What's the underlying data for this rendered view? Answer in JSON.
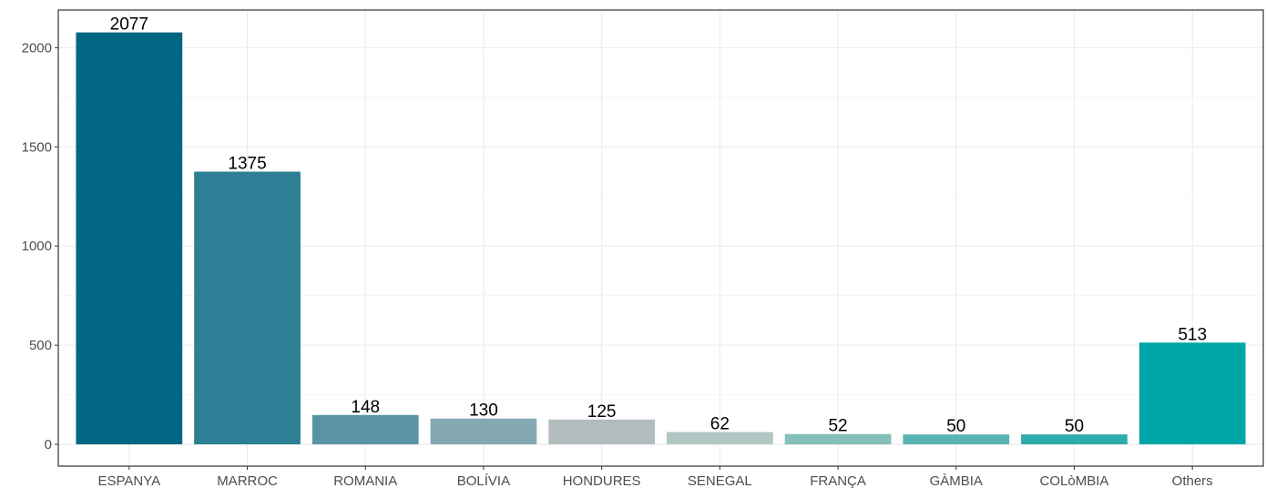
{
  "chart_data": {
    "type": "bar",
    "categories": [
      "ESPANYA",
      "MARROC",
      "ROMANIA",
      "BOLÍVIA",
      "HONDURES",
      "SENEGAL",
      "FRANÇA",
      "GÀMBIA",
      "COLòMBIA",
      "Others"
    ],
    "values": [
      2077,
      1375,
      148,
      130,
      125,
      62,
      52,
      50,
      50,
      513
    ],
    "data_labels": [
      "2077",
      "1375",
      "148",
      "130",
      "125",
      "62",
      "52",
      "50",
      "50",
      "513"
    ],
    "colors": [
      "#006683",
      "#2e7f96",
      "#5a93a5",
      "#84a9b2",
      "#b2bcbe",
      "#b2c7c4",
      "#84bfb9",
      "#58b4b2",
      "#2eabab",
      "#00a6a6"
    ],
    "title": "",
    "xlabel": "",
    "ylabel": "",
    "ylim": [
      -110,
      2190
    ],
    "yticks": [
      0,
      500,
      1000,
      1500,
      2000
    ],
    "ytick_labels": [
      "0",
      "500",
      "1000",
      "1500",
      "2000"
    ],
    "grid": true,
    "legend": "none",
    "theme": "bw",
    "background": "#ffffff",
    "gridline_color": "#ebebeb",
    "panel_border_color": "#333333"
  }
}
